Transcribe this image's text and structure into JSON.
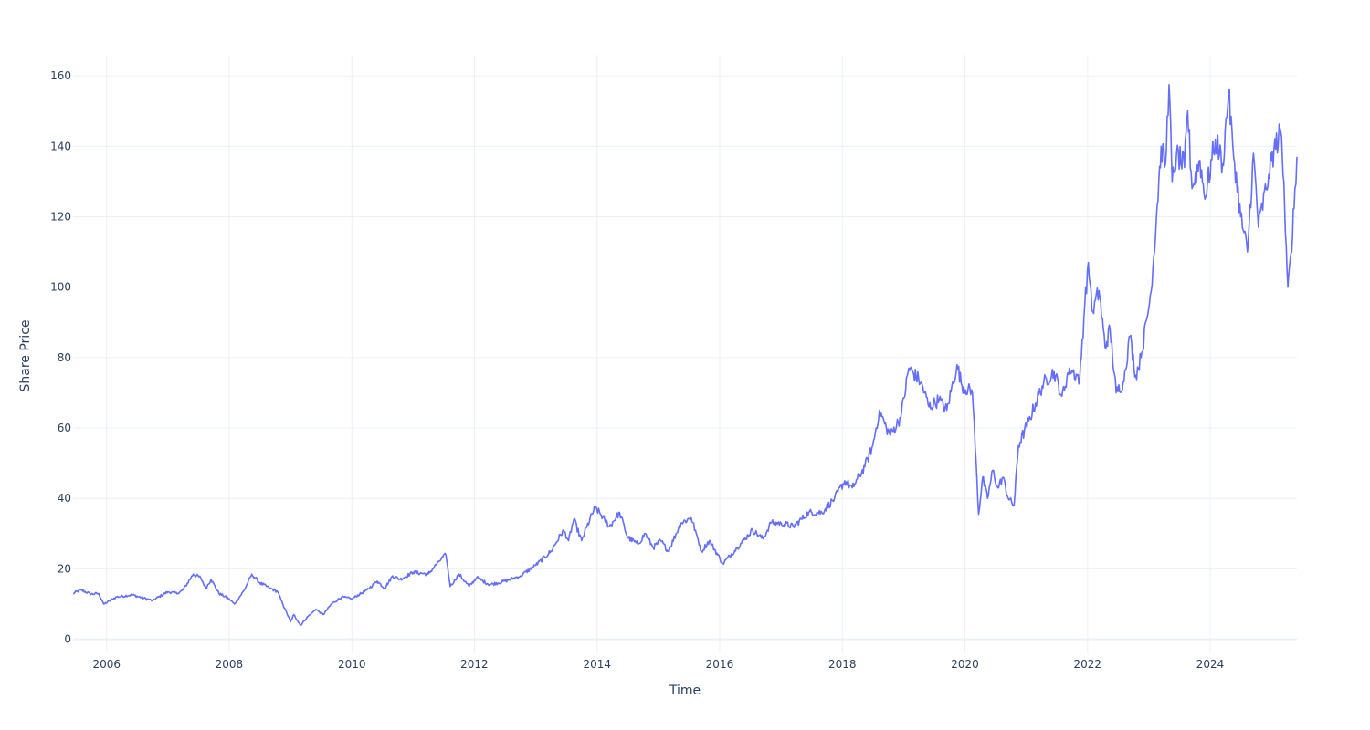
{
  "chart_data": {
    "type": "line",
    "title": "",
    "xlabel": "Time",
    "ylabel": "Share Price",
    "x_ticks": [
      "2006",
      "2008",
      "2010",
      "2012",
      "2014",
      "2016",
      "2018",
      "2020",
      "2022",
      "2024"
    ],
    "y_ticks": [
      0,
      20,
      40,
      60,
      80,
      100,
      120,
      140,
      160
    ],
    "xlim": [
      "2005-06-15",
      "2025-06-01"
    ],
    "ylim": [
      -4,
      166
    ],
    "grid": true,
    "legend": "none",
    "colors": {
      "line": "#636efa",
      "grid": "#ebf0f8",
      "text": "#2a3f5f",
      "background": "#ffffff"
    },
    "series": [
      {
        "color": "#636efa",
        "points": [
          [
            "2005-06-15",
            13.0
          ],
          [
            "2005-08-01",
            14.0
          ],
          [
            "2005-10-01",
            12.8
          ],
          [
            "2005-11-15",
            13.0
          ],
          [
            "2005-12-15",
            10.0
          ],
          [
            "2006-03-01",
            12.0
          ],
          [
            "2006-06-01",
            12.6
          ],
          [
            "2006-10-01",
            11.0
          ],
          [
            "2007-01-01",
            13.5
          ],
          [
            "2007-03-01",
            13.0
          ],
          [
            "2007-04-01",
            14.0
          ],
          [
            "2007-06-01",
            18.5
          ],
          [
            "2007-07-15",
            17.5
          ],
          [
            "2007-08-15",
            14.5
          ],
          [
            "2007-09-15",
            17.0
          ],
          [
            "2007-11-01",
            13.0
          ],
          [
            "2008-01-01",
            11.5
          ],
          [
            "2008-02-01",
            10.0
          ],
          [
            "2008-04-01",
            14.0
          ],
          [
            "2008-05-15",
            18.5
          ],
          [
            "2008-07-01",
            16.0
          ],
          [
            "2008-09-01",
            14.5
          ],
          [
            "2008-10-15",
            13.5
          ],
          [
            "2008-11-15",
            10.0
          ],
          [
            "2009-01-01",
            5.0
          ],
          [
            "2009-01-20",
            7.0
          ],
          [
            "2009-03-01",
            4.0
          ],
          [
            "2009-04-15",
            6.5
          ],
          [
            "2009-06-01",
            8.5
          ],
          [
            "2009-07-15",
            7.0
          ],
          [
            "2009-09-01",
            10.0
          ],
          [
            "2009-11-01",
            12.0
          ],
          [
            "2010-01-01",
            11.5
          ],
          [
            "2010-04-01",
            14.0
          ],
          [
            "2010-06-01",
            16.5
          ],
          [
            "2010-07-15",
            14.5
          ],
          [
            "2010-09-01",
            18.0
          ],
          [
            "2010-10-15",
            17.0
          ],
          [
            "2011-01-01",
            19.0
          ],
          [
            "2011-04-01",
            18.5
          ],
          [
            "2011-06-01",
            22.0
          ],
          [
            "2011-07-15",
            24.0
          ],
          [
            "2011-08-10",
            15.0
          ],
          [
            "2011-10-01",
            18.5
          ],
          [
            "2011-12-01",
            15.0
          ],
          [
            "2012-01-15",
            17.5
          ],
          [
            "2012-04-01",
            15.5
          ],
          [
            "2012-07-01",
            16.5
          ],
          [
            "2012-10-01",
            18.0
          ],
          [
            "2013-01-01",
            21.0
          ],
          [
            "2013-04-01",
            25.0
          ],
          [
            "2013-06-15",
            31.0
          ],
          [
            "2013-07-15",
            28.0
          ],
          [
            "2013-08-15",
            34.0
          ],
          [
            "2013-10-01",
            28.0
          ],
          [
            "2013-11-01",
            32.0
          ],
          [
            "2013-12-20",
            37.5
          ],
          [
            "2014-02-15",
            34.0
          ],
          [
            "2014-03-15",
            32.0
          ],
          [
            "2014-05-15",
            36.0
          ],
          [
            "2014-07-01",
            29.0
          ],
          [
            "2014-09-01",
            27.0
          ],
          [
            "2014-10-15",
            30.0
          ],
          [
            "2014-12-01",
            26.0
          ],
          [
            "2015-01-15",
            28.0
          ],
          [
            "2015-03-01",
            25.0
          ],
          [
            "2015-05-15",
            33.0
          ],
          [
            "2015-07-15",
            34.5
          ],
          [
            "2015-08-15",
            30.0
          ],
          [
            "2015-09-15",
            25.0
          ],
          [
            "2015-11-01",
            28.0
          ],
          [
            "2016-01-20",
            21.5
          ],
          [
            "2016-04-15",
            26.0
          ],
          [
            "2016-07-15",
            31.0
          ],
          [
            "2016-09-15",
            28.5
          ],
          [
            "2016-11-01",
            33.0
          ],
          [
            "2017-01-01",
            33.0
          ],
          [
            "2017-03-15",
            32.0
          ],
          [
            "2017-06-15",
            36.0
          ],
          [
            "2017-09-01",
            36.0
          ],
          [
            "2017-11-15",
            40.0
          ],
          [
            "2018-01-15",
            45.0
          ],
          [
            "2018-03-01",
            43.0
          ],
          [
            "2018-05-15",
            49.0
          ],
          [
            "2018-07-01",
            55.0
          ],
          [
            "2018-08-10",
            65.0
          ],
          [
            "2018-09-20",
            60.0
          ],
          [
            "2018-10-15",
            58.0
          ],
          [
            "2018-12-15",
            63.0
          ],
          [
            "2019-02-01",
            77.0
          ],
          [
            "2019-04-15",
            73.0
          ],
          [
            "2019-06-01",
            66.0
          ],
          [
            "2019-08-01",
            68.0
          ],
          [
            "2019-09-15",
            65.0
          ],
          [
            "2019-11-15",
            78.0
          ],
          [
            "2019-12-15",
            72.0
          ],
          [
            "2020-02-15",
            70.0
          ],
          [
            "2020-03-23",
            35.5
          ],
          [
            "2020-04-15",
            46.0
          ],
          [
            "2020-05-15",
            40.0
          ],
          [
            "2020-06-15",
            48.0
          ],
          [
            "2020-07-15",
            43.0
          ],
          [
            "2020-08-15",
            46.0
          ],
          [
            "2020-09-15",
            40.0
          ],
          [
            "2020-10-20",
            38.0
          ],
          [
            "2020-11-15",
            55.0
          ],
          [
            "2021-01-15",
            62.0
          ],
          [
            "2021-04-15",
            73.0
          ],
          [
            "2021-06-15",
            76.0
          ],
          [
            "2021-08-01",
            69.0
          ],
          [
            "2021-09-15",
            77.0
          ],
          [
            "2021-11-15",
            74.0
          ],
          [
            "2021-12-15",
            95.0
          ],
          [
            "2022-01-05",
            107.0
          ],
          [
            "2022-02-01",
            93.0
          ],
          [
            "2022-03-10",
            99.0
          ],
          [
            "2022-04-15",
            83.0
          ],
          [
            "2022-05-15",
            88.0
          ],
          [
            "2022-06-20",
            70.0
          ],
          [
            "2022-08-01",
            73.0
          ],
          [
            "2022-09-10",
            86.0
          ],
          [
            "2022-10-15",
            75.0
          ],
          [
            "2022-11-15",
            80.0
          ],
          [
            "2023-01-15",
            99.0
          ],
          [
            "2023-02-15",
            120.0
          ],
          [
            "2023-03-15",
            140.0
          ],
          [
            "2023-04-10",
            135.0
          ],
          [
            "2023-05-01",
            157.5
          ],
          [
            "2023-05-20",
            130.0
          ],
          [
            "2023-06-15",
            138.0
          ],
          [
            "2023-08-01",
            134.0
          ],
          [
            "2023-08-20",
            150.0
          ],
          [
            "2023-09-15",
            128.0
          ],
          [
            "2023-11-01",
            136.0
          ],
          [
            "2023-12-01",
            125.0
          ],
          [
            "2024-02-01",
            142.0
          ],
          [
            "2024-03-15",
            135.0
          ],
          [
            "2024-04-20",
            155.0
          ],
          [
            "2024-05-15",
            140.0
          ],
          [
            "2024-07-01",
            120.0
          ],
          [
            "2024-08-10",
            110.0
          ],
          [
            "2024-09-15",
            138.0
          ],
          [
            "2024-10-15",
            117.0
          ],
          [
            "2024-12-15",
            132.0
          ],
          [
            "2025-01-15",
            139.0
          ],
          [
            "2025-02-25",
            144.0
          ],
          [
            "2025-03-15",
            130.0
          ],
          [
            "2025-04-08",
            100.0
          ],
          [
            "2025-05-01",
            110.0
          ],
          [
            "2025-05-20",
            128.0
          ],
          [
            "2025-06-01",
            137.0
          ]
        ]
      }
    ]
  }
}
